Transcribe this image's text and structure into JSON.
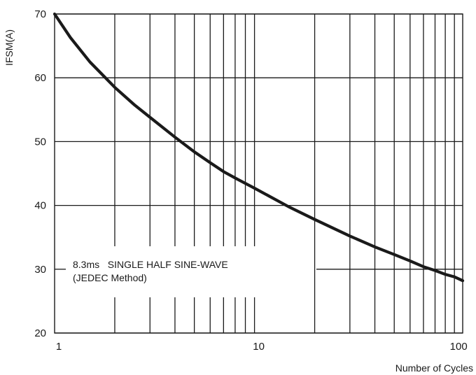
{
  "chart_data": {
    "type": "line",
    "title": "",
    "xlabel": "Number of Cycles",
    "ylabel": "IFSM(A)",
    "x_scale": "log",
    "xlim": [
      1,
      110
    ],
    "ylim": [
      20,
      70
    ],
    "x_ticks": [
      1,
      10,
      100
    ],
    "x_tick_labels": [
      "1",
      "10",
      "100"
    ],
    "y_ticks": [
      20,
      30,
      40,
      50,
      60,
      70
    ],
    "y_tick_labels": [
      "20",
      "30",
      "40",
      "50",
      "60",
      "70"
    ],
    "grid": true,
    "annotation": [
      "8.3ms   SINGLE HALF SINE-WAVE",
      "(JEDEC Method)"
    ],
    "series": [
      {
        "x": [
          1,
          1.2,
          1.5,
          2,
          2.5,
          3,
          4,
          5,
          6,
          7,
          8,
          10,
          15,
          20,
          30,
          40,
          50,
          60,
          70,
          80,
          90,
          100,
          110
        ],
        "y": [
          70,
          66.3,
          62.5,
          58.5,
          55.8,
          53.8,
          50.7,
          48.4,
          46.7,
          45.3,
          44.3,
          42.7,
          39.7,
          37.8,
          35.2,
          33.5,
          32.3,
          31.3,
          30.4,
          29.8,
          29.2,
          28.8,
          28.2
        ]
      }
    ]
  }
}
